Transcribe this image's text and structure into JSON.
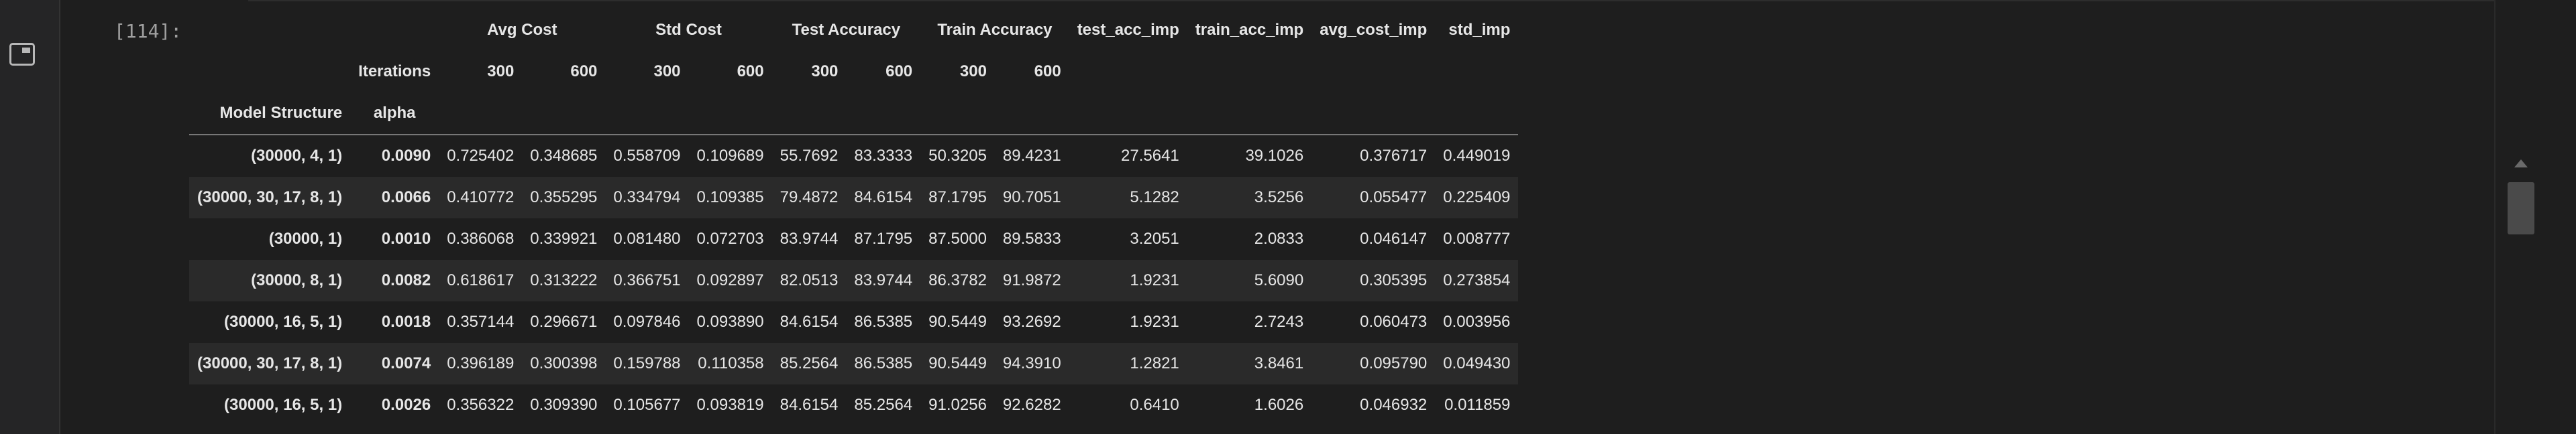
{
  "prompt": "[114]:",
  "columns": {
    "group_labels": {
      "avg_cost": "Avg Cost",
      "std_cost": "Std Cost",
      "test_acc": "Test Accuracy",
      "train_acc": "Train Accuracy",
      "test_acc_imp": "test_acc_imp",
      "train_acc_imp": "train_acc_imp",
      "avg_cost_imp": "avg_cost_imp",
      "std_imp": "std_imp"
    },
    "iterations_label": "Iterations",
    "iter_values": [
      "300",
      "600",
      "300",
      "600",
      "300",
      "600",
      "300",
      "600"
    ],
    "index_name_1": "Model Structure",
    "index_name_2": "alpha"
  },
  "rows": [
    {
      "structure": "(30000, 4, 1)",
      "alpha": "0.0090",
      "vals": [
        "0.725402",
        "0.348685",
        "0.558709",
        "0.109689",
        "55.7692",
        "83.3333",
        "50.3205",
        "89.4231",
        "27.5641",
        "39.1026",
        "0.376717",
        "0.449019"
      ]
    },
    {
      "structure": "(30000, 30, 17, 8, 1)",
      "alpha": "0.0066",
      "vals": [
        "0.410772",
        "0.355295",
        "0.334794",
        "0.109385",
        "79.4872",
        "84.6154",
        "87.1795",
        "90.7051",
        "5.1282",
        "3.5256",
        "0.055477",
        "0.225409"
      ]
    },
    {
      "structure": "(30000, 1)",
      "alpha": "0.0010",
      "vals": [
        "0.386068",
        "0.339921",
        "0.081480",
        "0.072703",
        "83.9744",
        "87.1795",
        "87.5000",
        "89.5833",
        "3.2051",
        "2.0833",
        "0.046147",
        "0.008777"
      ]
    },
    {
      "structure": "(30000, 8, 1)",
      "alpha": "0.0082",
      "vals": [
        "0.618617",
        "0.313222",
        "0.366751",
        "0.092897",
        "82.0513",
        "83.9744",
        "86.3782",
        "91.9872",
        "1.9231",
        "5.6090",
        "0.305395",
        "0.273854"
      ]
    },
    {
      "structure": "(30000, 16, 5, 1)",
      "alpha": "0.0018",
      "vals": [
        "0.357144",
        "0.296671",
        "0.097846",
        "0.093890",
        "84.6154",
        "86.5385",
        "90.5449",
        "93.2692",
        "1.9231",
        "2.7243",
        "0.060473",
        "0.003956"
      ]
    },
    {
      "structure": "(30000, 30, 17, 8, 1)",
      "alpha": "0.0074",
      "vals": [
        "0.396189",
        "0.300398",
        "0.159788",
        "0.110358",
        "85.2564",
        "86.5385",
        "90.5449",
        "94.3910",
        "1.2821",
        "3.8461",
        "0.095790",
        "0.049430"
      ]
    },
    {
      "structure": "(30000, 16, 5, 1)",
      "alpha": "0.0026",
      "vals": [
        "0.356322",
        "0.309390",
        "0.105677",
        "0.093819",
        "84.6154",
        "85.2564",
        "91.0256",
        "92.6282",
        "0.6410",
        "1.6026",
        "0.046932",
        "0.011859"
      ]
    }
  ]
}
